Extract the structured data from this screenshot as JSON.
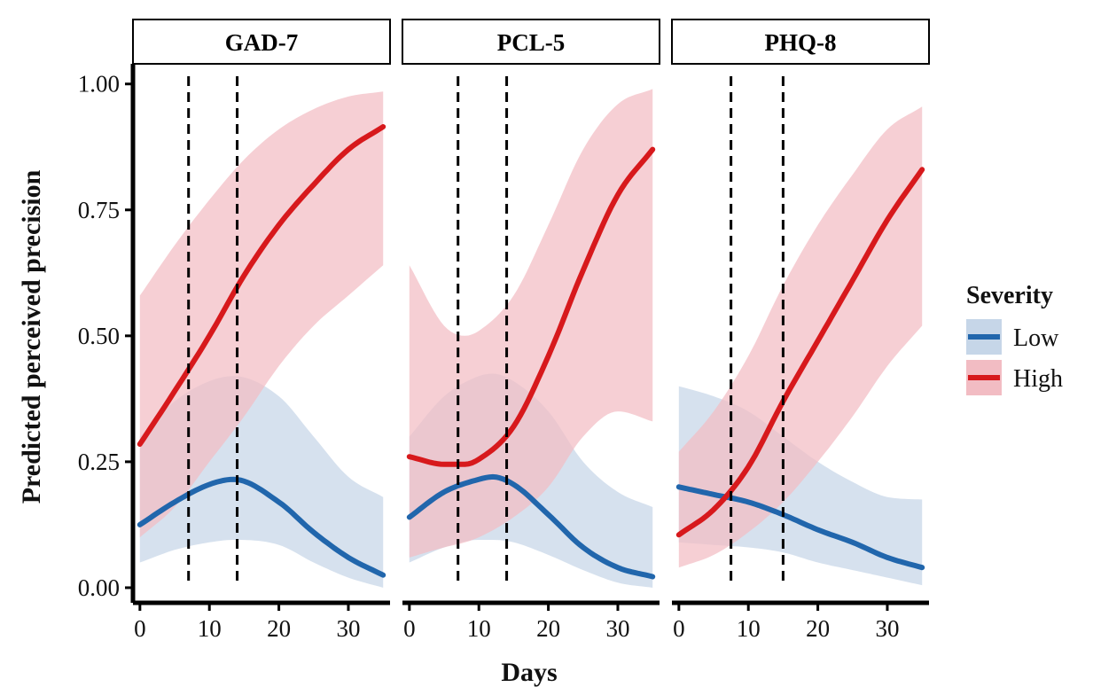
{
  "chart_data": {
    "type": "line",
    "xlabel": "Days",
    "ylabel": "Predicted perceived precision",
    "xlim": [
      -1,
      36
    ],
    "ylim": [
      -0.03,
      1.04
    ],
    "x_ticks": [
      0,
      10,
      20,
      30
    ],
    "x_tick_labels": [
      "0",
      "10",
      "20",
      "30"
    ],
    "y_ticks": [
      0,
      0.25,
      0.5,
      0.75,
      1.0
    ],
    "y_tick_labels": [
      "0.00",
      "0.25",
      "0.50",
      "0.75",
      "1.00"
    ],
    "legend": {
      "title": "Severity",
      "position": "right",
      "entries": [
        {
          "label": "Low",
          "color": "#2166ac",
          "fill": "#c6d6e8"
        },
        {
          "label": "High",
          "color": "#d7191c",
          "fill": "#f2bcc3"
        }
      ]
    },
    "panels": [
      {
        "title": "GAD-7",
        "vlines": [
          7,
          14
        ],
        "series": [
          {
            "name": "Low",
            "x": [
              0,
              5,
              10,
              13.5,
              20,
              25,
              30,
              35
            ],
            "y": [
              0.125,
              0.17,
              0.205,
              0.215,
              0.17,
              0.11,
              0.06,
              0.025
            ],
            "lower": [
              0.05,
              0.075,
              0.09,
              0.095,
              0.085,
              0.05,
              0.02,
              0.0
            ],
            "upper": [
              0.3,
              0.37,
              0.41,
              0.42,
              0.38,
              0.3,
              0.22,
              0.18
            ]
          },
          {
            "name": "High",
            "x": [
              0,
              5,
              10,
              15,
              20,
              25,
              30,
              35
            ],
            "y": [
              0.285,
              0.39,
              0.5,
              0.62,
              0.72,
              0.8,
              0.87,
              0.915
            ],
            "lower": [
              0.1,
              0.16,
              0.25,
              0.34,
              0.44,
              0.52,
              0.58,
              0.64
            ],
            "upper": [
              0.58,
              0.68,
              0.77,
              0.85,
              0.91,
              0.95,
              0.975,
              0.985
            ]
          }
        ]
      },
      {
        "title": "PCL-5",
        "vlines": [
          7,
          14
        ],
        "series": [
          {
            "name": "Low",
            "x": [
              0,
              5,
              10,
              12,
              15,
              20,
              25,
              30,
              35
            ],
            "y": [
              0.14,
              0.19,
              0.215,
              0.22,
              0.205,
              0.145,
              0.08,
              0.04,
              0.022
            ],
            "lower": [
              0.05,
              0.08,
              0.095,
              0.095,
              0.09,
              0.065,
              0.035,
              0.01,
              0.0
            ],
            "upper": [
              0.3,
              0.38,
              0.42,
              0.425,
              0.41,
              0.35,
              0.25,
              0.19,
              0.16
            ]
          },
          {
            "name": "High",
            "x": [
              0,
              5,
              8,
              10,
              15,
              20,
              25,
              30,
              35
            ],
            "y": [
              0.26,
              0.245,
              0.245,
              0.255,
              0.32,
              0.46,
              0.63,
              0.78,
              0.87
            ],
            "lower": [
              0.06,
              0.08,
              0.09,
              0.1,
              0.14,
              0.2,
              0.3,
              0.35,
              0.33
            ],
            "upper": [
              0.64,
              0.52,
              0.5,
              0.51,
              0.58,
              0.72,
              0.87,
              0.96,
              0.99
            ]
          }
        ]
      },
      {
        "title": "PHQ-8",
        "vlines": [
          7.5,
          15
        ],
        "series": [
          {
            "name": "Low",
            "x": [
              0,
              5,
              10,
              15,
              20,
              25,
              30,
              35
            ],
            "y": [
              0.2,
              0.185,
              0.17,
              0.145,
              0.115,
              0.09,
              0.06,
              0.04
            ],
            "lower": [
              0.09,
              0.085,
              0.08,
              0.07,
              0.05,
              0.035,
              0.02,
              0.005
            ],
            "upper": [
              0.4,
              0.38,
              0.35,
              0.3,
              0.25,
              0.21,
              0.18,
              0.175
            ]
          },
          {
            "name": "High",
            "x": [
              0,
              5,
              10,
              15,
              20,
              25,
              30,
              35
            ],
            "y": [
              0.105,
              0.155,
              0.24,
              0.37,
              0.49,
              0.61,
              0.73,
              0.83
            ],
            "lower": [
              0.04,
              0.065,
              0.11,
              0.17,
              0.25,
              0.34,
              0.44,
              0.52
            ],
            "upper": [
              0.27,
              0.35,
              0.46,
              0.6,
              0.72,
              0.82,
              0.91,
              0.955
            ]
          }
        ]
      }
    ]
  }
}
